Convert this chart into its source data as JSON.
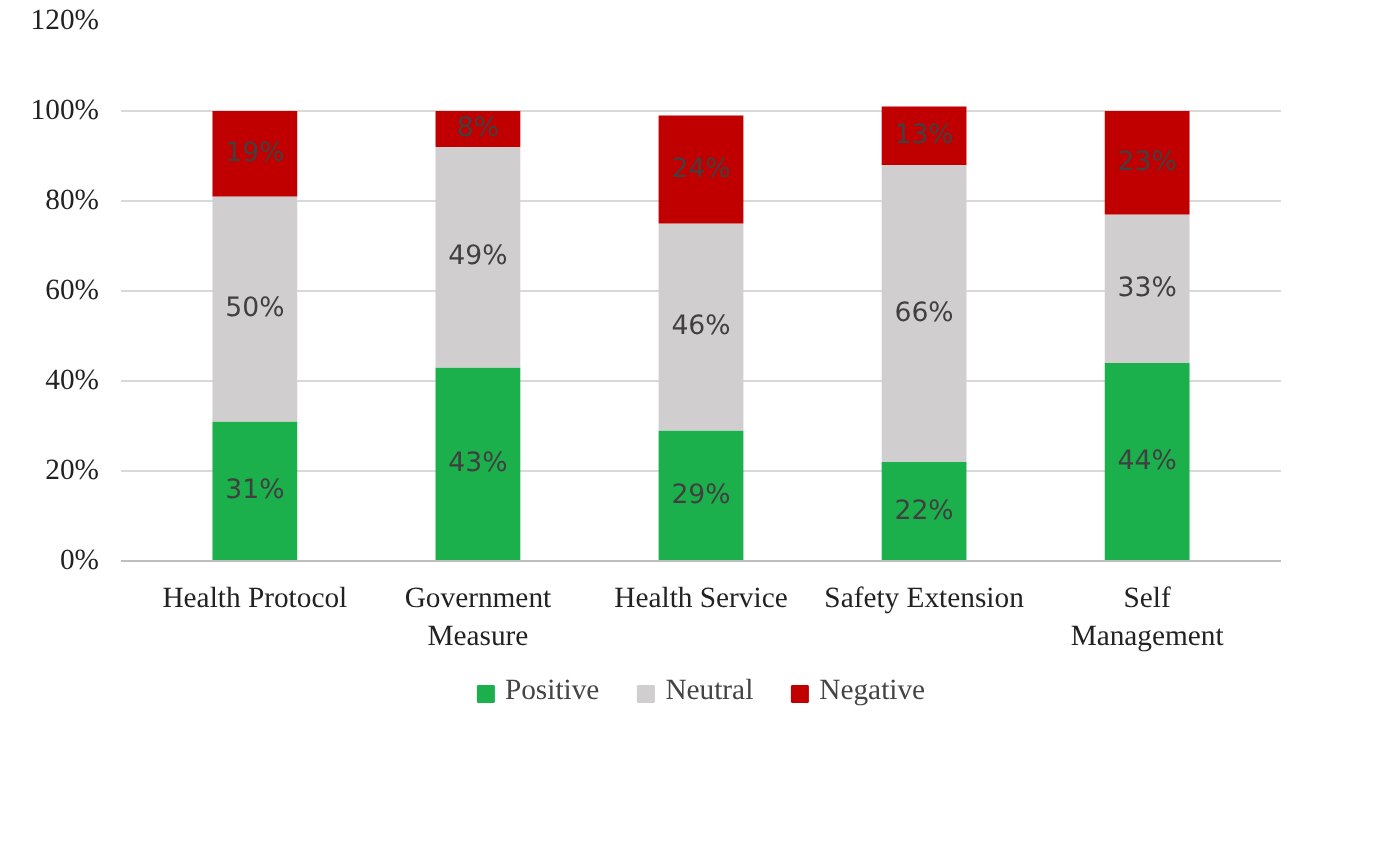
{
  "chart_data": {
    "type": "bar",
    "stacked": true,
    "categories": [
      "Health Protocol",
      "Government\nMeasure",
      "Health Service",
      "Safety Extension",
      "Self\nManagement"
    ],
    "series": [
      {
        "name": "Positive",
        "color": "#1cb04c",
        "values": [
          31,
          43,
          29,
          22,
          44
        ],
        "value_labels": [
          "31%",
          "43%",
          "29%",
          "22%",
          "44%"
        ]
      },
      {
        "name": "Neutral",
        "color": "#d0cece",
        "values": [
          50,
          49,
          46,
          66,
          33
        ],
        "value_labels": [
          "50%",
          "49%",
          "46%",
          "66%",
          "33%"
        ]
      },
      {
        "name": "Negative",
        "color": "#c00000",
        "values": [
          19,
          8,
          24,
          13,
          23
        ],
        "value_labels": [
          "19%",
          "8%",
          "24%",
          "13%",
          "23%"
        ]
      }
    ],
    "ylim": [
      0,
      120
    ],
    "yticks": [
      {
        "value": 0,
        "label": "0%"
      },
      {
        "value": 20,
        "label": "20%"
      },
      {
        "value": 40,
        "label": "40%"
      },
      {
        "value": 60,
        "label": "60%"
      },
      {
        "value": 80,
        "label": "80%"
      },
      {
        "value": 100,
        "label": "100%"
      },
      {
        "value": 120,
        "label": "120%"
      }
    ],
    "grid": "y",
    "legend": "bottom"
  }
}
